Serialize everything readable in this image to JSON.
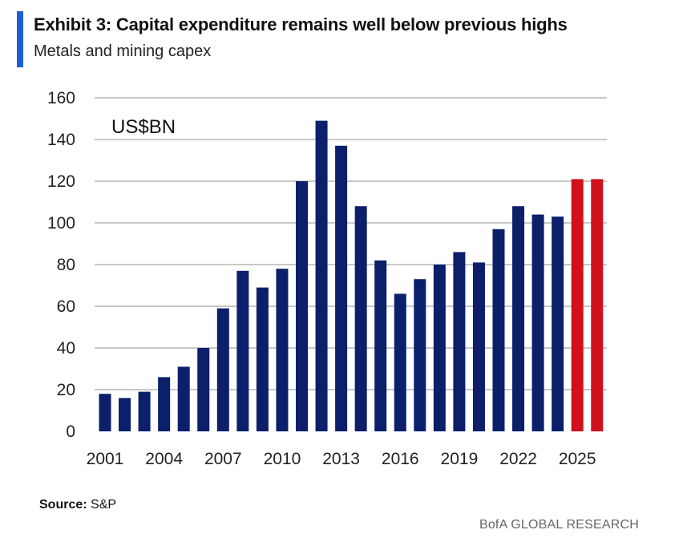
{
  "header": {
    "title": "Exhibit 3: Capital expenditure remains well below previous highs",
    "subtitle": "Metals and mining capex"
  },
  "footer": {
    "source_label": "Source:",
    "source_value": "S&P",
    "brand": "BofA GLOBAL RESEARCH"
  },
  "colors": {
    "accent": "#1f5fd6",
    "actual": "#0b1f6b",
    "forecast": "#d0101a",
    "grid": "#c8c8c8"
  },
  "chart_data": {
    "type": "bar",
    "title": "Exhibit 3: Capital expenditure remains well below previous highs",
    "subtitle": "Metals and mining capex",
    "unit_label": "US$BN",
    "xlabel": "",
    "ylabel": "",
    "ylim": [
      0,
      160
    ],
    "yticks": [
      0,
      20,
      40,
      60,
      80,
      100,
      120,
      140,
      160
    ],
    "categories": [
      "2001",
      "2002",
      "2003",
      "2004",
      "2005",
      "2006",
      "2007",
      "2008",
      "2009",
      "2010",
      "2011",
      "2012",
      "2013",
      "2014",
      "2015",
      "2016",
      "2017",
      "2018",
      "2019",
      "2020",
      "2021",
      "2022",
      "2023",
      "2024",
      "2025",
      "2026"
    ],
    "xtick_labels": [
      "2001",
      "2004",
      "2007",
      "2010",
      "2013",
      "2016",
      "2019",
      "2022",
      "2025"
    ],
    "values": [
      18,
      16,
      19,
      26,
      31,
      40,
      59,
      77,
      69,
      78,
      120,
      149,
      137,
      108,
      82,
      66,
      73,
      80,
      86,
      81,
      97,
      108,
      104,
      103,
      121,
      121
    ],
    "bar_colors": [
      "actual",
      "actual",
      "actual",
      "actual",
      "actual",
      "actual",
      "actual",
      "actual",
      "actual",
      "actual",
      "actual",
      "actual",
      "actual",
      "actual",
      "actual",
      "actual",
      "actual",
      "actual",
      "actual",
      "actual",
      "actual",
      "actual",
      "actual",
      "actual",
      "forecast",
      "forecast"
    ],
    "grid": true,
    "legend": "none"
  }
}
